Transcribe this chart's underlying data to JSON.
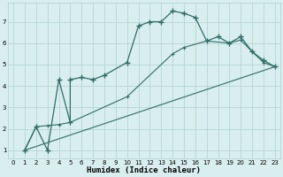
{
  "xlabel": "Humidex (Indice chaleur)",
  "background_color": "#d9eeee",
  "grid_color": "#b0d0d0",
  "line_color": "#2d6e65",
  "xlim": [
    -0.5,
    23.5
  ],
  "ylim": [
    0.6,
    7.9
  ],
  "yticks": [
    1,
    2,
    3,
    4,
    5,
    6,
    7
  ],
  "xticks": [
    0,
    1,
    2,
    3,
    4,
    5,
    6,
    7,
    8,
    9,
    10,
    11,
    12,
    13,
    14,
    15,
    16,
    17,
    18,
    19,
    20,
    21,
    22,
    23
  ],
  "main_x": [
    1,
    2,
    3,
    4,
    5,
    5,
    6,
    7,
    8,
    10,
    11,
    12,
    13,
    14,
    15,
    16,
    17,
    18,
    19,
    20,
    21,
    22,
    23
  ],
  "main_y": [
    1.0,
    2.1,
    1.0,
    4.3,
    2.3,
    4.3,
    4.4,
    4.3,
    4.5,
    5.1,
    6.8,
    7.0,
    7.0,
    7.5,
    7.4,
    7.2,
    6.1,
    6.3,
    6.0,
    6.3,
    5.6,
    5.2,
    4.9
  ],
  "line2_x": [
    1,
    2,
    3,
    4,
    5,
    10,
    14,
    15,
    17,
    19,
    20,
    21,
    22,
    23
  ],
  "line2_y": [
    1.0,
    2.1,
    2.15,
    2.2,
    2.3,
    3.5,
    5.5,
    5.8,
    6.1,
    6.0,
    6.15,
    5.6,
    5.1,
    4.9
  ],
  "line3_x": [
    1,
    23
  ],
  "line3_y": [
    1.0,
    4.9
  ]
}
